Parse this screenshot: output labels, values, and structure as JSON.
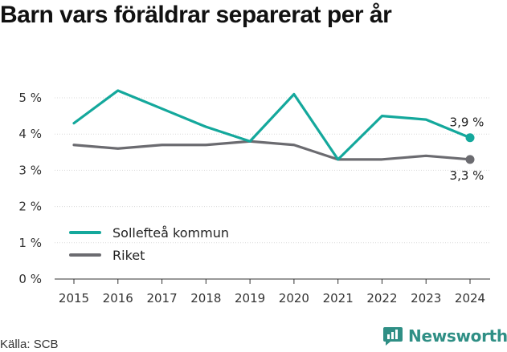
{
  "title": "Barn vars föräldrar separerat per år",
  "source": "Källa: SCB",
  "brand": {
    "name": "Newsworthy",
    "icon": "newsworthy-logo-icon",
    "color": "#2f8f85"
  },
  "chart_data": {
    "type": "line",
    "x": [
      2015,
      2016,
      2017,
      2018,
      2019,
      2020,
      2021,
      2022,
      2023,
      2024
    ],
    "ylim": [
      0,
      5
    ],
    "yticks": [
      "0 %",
      "1 %",
      "2 %",
      "3 %",
      "4 %",
      "5 %"
    ],
    "grid": true,
    "legend": "bottom-left",
    "series": [
      {
        "name": "Sollefteå kommun",
        "color": "#14a89c",
        "values": [
          4.3,
          5.2,
          4.7,
          4.2,
          3.8,
          5.1,
          3.3,
          4.5,
          4.4,
          3.9
        ],
        "end_label": "3,9 %"
      },
      {
        "name": "Riket",
        "color": "#6b6b70",
        "values": [
          3.7,
          3.6,
          3.7,
          3.7,
          3.8,
          3.7,
          3.3,
          3.3,
          3.4,
          3.3
        ],
        "end_label": "3,3 %"
      }
    ]
  }
}
